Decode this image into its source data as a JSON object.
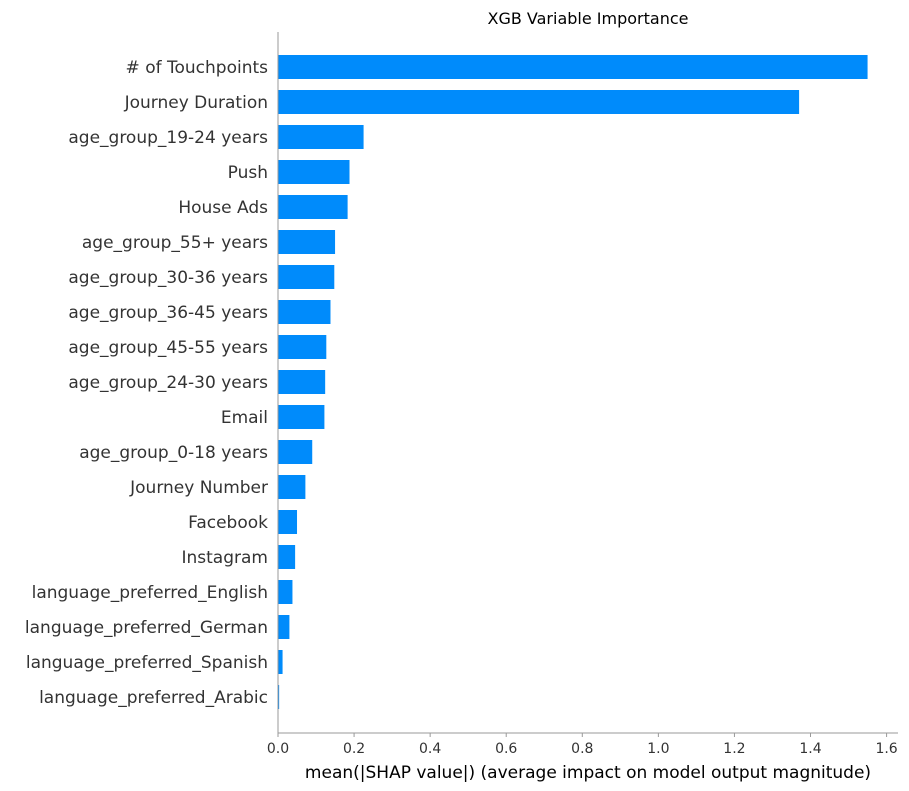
{
  "chart_data": {
    "type": "bar",
    "orientation": "horizontal",
    "title": "XGB Variable Importance",
    "xlabel": "mean(|SHAP value|) (average impact on model output magnitude)",
    "ylabel": "",
    "xlim": [
      0,
      1.63
    ],
    "xticks": [
      "0.0",
      "0.2",
      "0.4",
      "0.6",
      "0.8",
      "1.0",
      "1.2",
      "1.4",
      "1.6"
    ],
    "grid": false,
    "bar_color": "#008bfb",
    "categories": [
      "# of Touchpoints",
      "Journey Duration",
      "age_group_19-24 years",
      "Push",
      "House Ads",
      "age_group_55+ years",
      "age_group_30-36 years",
      "age_group_36-45 years",
      "age_group_45-55 years",
      "age_group_24-30 years",
      "Email",
      "age_group_0-18 years",
      "Journey Number",
      "Facebook",
      "Instagram",
      "language_preferred_English",
      "language_preferred_German",
      "language_preferred_Spanish",
      "language_preferred_Arabic"
    ],
    "values": [
      1.55,
      1.37,
      0.225,
      0.188,
      0.183,
      0.15,
      0.148,
      0.138,
      0.127,
      0.124,
      0.122,
      0.09,
      0.072,
      0.05,
      0.045,
      0.038,
      0.03,
      0.012,
      0.003
    ]
  }
}
